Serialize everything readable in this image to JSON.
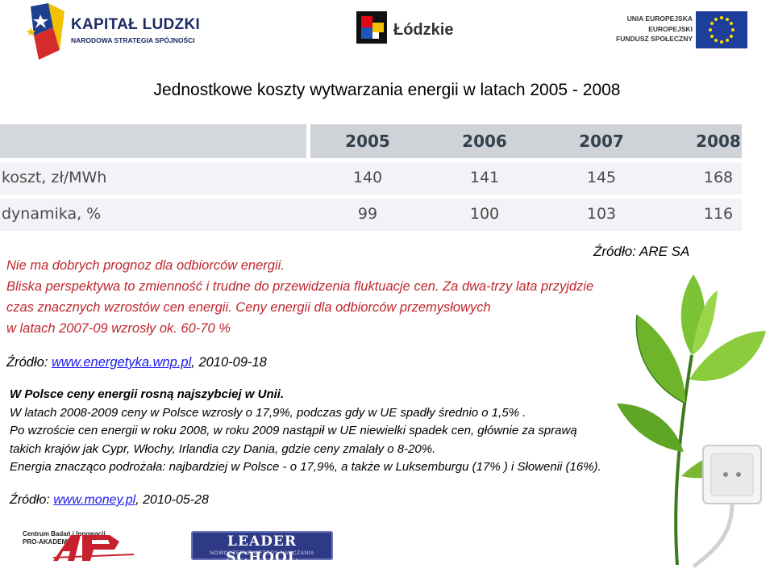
{
  "header": {
    "kapital_title": "KAPITAŁ LUDZKI",
    "kapital_subtitle": "NARODOWA STRATEGIA SPÓJNOŚCI",
    "lodzkie": "Łódzkie",
    "ue_line1": "UNIA EUROPEJSKA",
    "ue_line2": "EUROPEJSKI",
    "ue_line3": "FUNDUSZ SPOŁECZNY"
  },
  "title": "Jednostkowe koszty wytwarzania energii w latach 2005 - 2008",
  "table": {
    "years": [
      "2005",
      "2006",
      "2007",
      "2008"
    ],
    "rows": [
      {
        "label": "koszt, zł/MWh",
        "values": [
          "140",
          "141",
          "145",
          "168"
        ]
      },
      {
        "label": "dynamika, %",
        "values": [
          "99",
          "100",
          "103",
          "116"
        ]
      }
    ]
  },
  "source_are": "Źródło: ARE SA",
  "red_paragraph": {
    "line1": "Nie ma dobrych prognoz dla odbiorców energii.",
    "line2": "Bliska perspektywa to zmienność i trudne do przewidzenia fluktuacje cen. Za dwa-trzy lata przyjdzie",
    "line3": "czas znacznych wzrostów cen energii. Ceny energii dla odbiorców przemysłowych",
    "line4": "w latach 2007-09 wzrosły ok. 60-70 %"
  },
  "source1": {
    "prefix": "Źródło: ",
    "link": "www.energetyka.wnp.pl",
    "suffix": ", 2010-09-18"
  },
  "block": {
    "line1": "W Polsce ceny energii rosną najszybciej w Unii.",
    "line2": "W latach 2008-2009 ceny w Polsce wzrosły o 17,9%, podczas gdy w UE spadły średnio o 1,5% .",
    "line3": "Po wzroście cen energii w roku 2008, w roku 2009 nastąpił w UE niewielki spadek cen, głównie za sprawą",
    "line4": "takich krajów jak Cypr, Włochy, Irlandia czy Dania, gdzie ceny zmalały o 8-20%.",
    "line5": "Energia znacząco podrożała: najbardziej w Polsce - o 17,9%, a także w Luksemburgu (17% ) i Słowenii (16%)."
  },
  "source2": {
    "prefix": "Źródło: ",
    "link": "www.money.pl",
    "suffix": ", 2010-05-28"
  },
  "footer": {
    "proakademia_line1": "Centrum Badań i Innowacji",
    "proakademia_line2": "PRO-AKADEMIA",
    "leader_main": "LEADER SCHOOL",
    "leader_sub": "NOWOCZESNE METODY NAUCZANIA"
  },
  "colors": {
    "accent_red": "#c0272d",
    "link_blue": "#1a1aee",
    "table_header": "#cfd3d8",
    "table_row": "#f1f3f6"
  }
}
